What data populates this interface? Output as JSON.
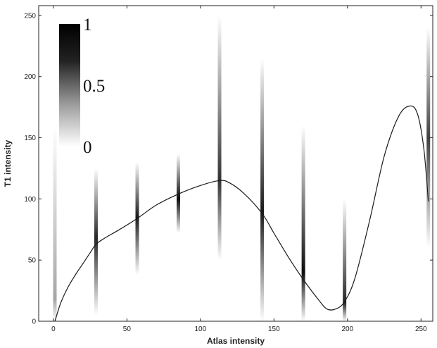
{
  "chart_data": {
    "type": "heatmap",
    "title": "",
    "xlabel": "Atlas intensity",
    "ylabel": "T1 intensity",
    "xlim": [
      -10,
      258
    ],
    "ylim": [
      0,
      258
    ],
    "x_ticks": [
      0,
      50,
      100,
      150,
      200,
      250
    ],
    "y_ticks": [
      0,
      50,
      100,
      150,
      200,
      250
    ],
    "grid": false,
    "colorbar": {
      "placement": "top-left",
      "range": [
        0,
        1
      ],
      "ticks": [
        {
          "value": 1,
          "label": "1"
        },
        {
          "value": 0.5,
          "label": "0.5"
        },
        {
          "value": 0,
          "label": "0"
        }
      ],
      "colormap": "white-to-black"
    },
    "histogram_columns": [
      {
        "x": 1,
        "y_min": 0,
        "y_max": 160,
        "peak": 18,
        "intensity": 0.35
      },
      {
        "x": 29,
        "y_min": 5,
        "y_max": 125,
        "peak": 68,
        "intensity": 0.85
      },
      {
        "x": 57,
        "y_min": 38,
        "y_max": 130,
        "peak": 85,
        "intensity": 0.9
      },
      {
        "x": 85,
        "y_min": 72,
        "y_max": 137,
        "peak": 100,
        "intensity": 0.95
      },
      {
        "x": 113,
        "y_min": 50,
        "y_max": 250,
        "peak": 115,
        "intensity": 0.8
      },
      {
        "x": 142,
        "y_min": 0,
        "y_max": 215,
        "peak": 90,
        "intensity": 0.9
      },
      {
        "x": 170,
        "y_min": 0,
        "y_max": 160,
        "peak": 40,
        "intensity": 0.95
      },
      {
        "x": 198,
        "y_min": 0,
        "y_max": 100,
        "peak": 15,
        "intensity": 0.85
      },
      {
        "x": 255,
        "y_min": 60,
        "y_max": 240,
        "peak": 150,
        "intensity": 0.75
      }
    ],
    "series": [
      {
        "type": "line",
        "color": "#1a1a1a",
        "points": [
          [
            1,
            0
          ],
          [
            5,
            15
          ],
          [
            10,
            28
          ],
          [
            15,
            38
          ],
          [
            20,
            47
          ],
          [
            25,
            56
          ],
          [
            29,
            63
          ],
          [
            35,
            68
          ],
          [
            45,
            75
          ],
          [
            57,
            84
          ],
          [
            70,
            95
          ],
          [
            85,
            104
          ],
          [
            100,
            111
          ],
          [
            113,
            115
          ],
          [
            120,
            113
          ],
          [
            130,
            104
          ],
          [
            142,
            88
          ],
          [
            150,
            72
          ],
          [
            160,
            52
          ],
          [
            170,
            34
          ],
          [
            180,
            18
          ],
          [
            186,
            10
          ],
          [
            192,
            10
          ],
          [
            198,
            16
          ],
          [
            205,
            35
          ],
          [
            215,
            82
          ],
          [
            225,
            135
          ],
          [
            235,
            168
          ],
          [
            243,
            176
          ],
          [
            248,
            168
          ],
          [
            252,
            140
          ],
          [
            255,
            98
          ]
        ]
      }
    ]
  }
}
